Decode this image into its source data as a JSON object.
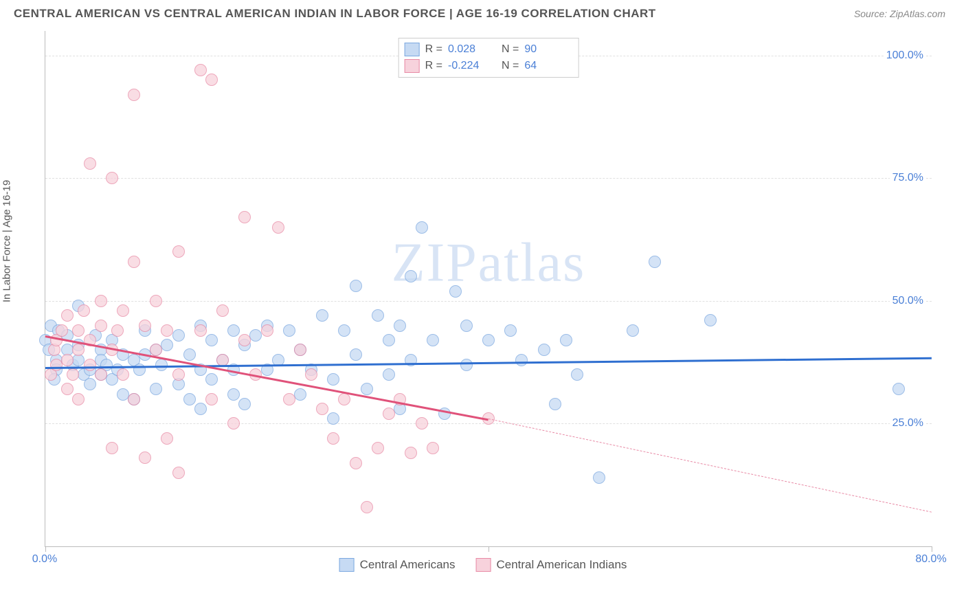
{
  "header": {
    "title": "CENTRAL AMERICAN VS CENTRAL AMERICAN INDIAN IN LABOR FORCE | AGE 16-19 CORRELATION CHART",
    "source": "Source: ZipAtlas.com"
  },
  "chart": {
    "type": "scatter",
    "ylabel": "In Labor Force | Age 16-19",
    "watermark": "ZIPatlas",
    "background_color": "#ffffff",
    "grid_color": "#e0e0e0",
    "axis_color": "#bbbbbb",
    "tick_label_color": "#4a7fd6",
    "label_fontsize": 15,
    "tick_fontsize": 16,
    "xlim": [
      0,
      80
    ],
    "ylim": [
      0,
      105
    ],
    "xticks": [
      {
        "value": 0,
        "label": "0.0%"
      },
      {
        "value": 40,
        "label": ""
      },
      {
        "value": 80,
        "label": "80.0%"
      }
    ],
    "yticks": [
      {
        "value": 25,
        "label": "25.0%"
      },
      {
        "value": 50,
        "label": "50.0%"
      },
      {
        "value": 75,
        "label": "75.0%"
      },
      {
        "value": 100,
        "label": "100.0%"
      }
    ],
    "series": [
      {
        "name": "Central Americans",
        "fill": "#c6daf3",
        "stroke": "#7ba8e0",
        "line_color": "#2f6fd0",
        "r_label": "R =",
        "r_value": "0.028",
        "n_label": "N =",
        "n_value": "90",
        "marker_radius": 8,
        "marker_opacity": 0.75,
        "trend": {
          "x1": 0,
          "y1": 36.5,
          "x2": 80,
          "y2": 38.5,
          "dash_from_x": 80
        },
        "points": [
          [
            0.5,
            45
          ],
          [
            0,
            42
          ],
          [
            0.3,
            40
          ],
          [
            1,
            38
          ],
          [
            1,
            36
          ],
          [
            0.8,
            34
          ],
          [
            1.2,
            44
          ],
          [
            2,
            43
          ],
          [
            2,
            40
          ],
          [
            2.5,
            37
          ],
          [
            3,
            49
          ],
          [
            3,
            41
          ],
          [
            3,
            38
          ],
          [
            3.5,
            35
          ],
          [
            4,
            36
          ],
          [
            4,
            33
          ],
          [
            4.5,
            43
          ],
          [
            5,
            40
          ],
          [
            5,
            38
          ],
          [
            5,
            35
          ],
          [
            5.5,
            37
          ],
          [
            6,
            42
          ],
          [
            6,
            34
          ],
          [
            6.5,
            36
          ],
          [
            7,
            39
          ],
          [
            7,
            31
          ],
          [
            8,
            38
          ],
          [
            8,
            30
          ],
          [
            8.5,
            36
          ],
          [
            9,
            44
          ],
          [
            9,
            39
          ],
          [
            10,
            40
          ],
          [
            10,
            32
          ],
          [
            10.5,
            37
          ],
          [
            11,
            41
          ],
          [
            12,
            43
          ],
          [
            12,
            33
          ],
          [
            13,
            39
          ],
          [
            13,
            30
          ],
          [
            14,
            45
          ],
          [
            14,
            36
          ],
          [
            14,
            28
          ],
          [
            15,
            42
          ],
          [
            15,
            34
          ],
          [
            16,
            38
          ],
          [
            17,
            44
          ],
          [
            17,
            36
          ],
          [
            17,
            31
          ],
          [
            18,
            41
          ],
          [
            18,
            29
          ],
          [
            19,
            43
          ],
          [
            20,
            45
          ],
          [
            20,
            36
          ],
          [
            21,
            38
          ],
          [
            22,
            44
          ],
          [
            23,
            31
          ],
          [
            23,
            40
          ],
          [
            24,
            36
          ],
          [
            25,
            47
          ],
          [
            26,
            34
          ],
          [
            26,
            26
          ],
          [
            27,
            44
          ],
          [
            28,
            39
          ],
          [
            28,
            53
          ],
          [
            29,
            32
          ],
          [
            30,
            47
          ],
          [
            31,
            42
          ],
          [
            31,
            35
          ],
          [
            32,
            45
          ],
          [
            32,
            28
          ],
          [
            33,
            55
          ],
          [
            33,
            38
          ],
          [
            34,
            65
          ],
          [
            35,
            42
          ],
          [
            36,
            27
          ],
          [
            37,
            52
          ],
          [
            38,
            45
          ],
          [
            38,
            37
          ],
          [
            40,
            42
          ],
          [
            42,
            44
          ],
          [
            43,
            38
          ],
          [
            45,
            40
          ],
          [
            46,
            29
          ],
          [
            47,
            42
          ],
          [
            48,
            35
          ],
          [
            50,
            14
          ],
          [
            53,
            44
          ],
          [
            55,
            58
          ],
          [
            60,
            46
          ],
          [
            77,
            32
          ]
        ]
      },
      {
        "name": "Central American Indians",
        "fill": "#f7d2dc",
        "stroke": "#e88aa5",
        "line_color": "#e0527a",
        "r_label": "R =",
        "r_value": "-0.224",
        "n_label": "N =",
        "n_value": "64",
        "marker_radius": 8,
        "marker_opacity": 0.75,
        "trend": {
          "x1": 0,
          "y1": 43,
          "x2": 40,
          "y2": 26,
          "dash_from_x": 40,
          "dash_x2": 80,
          "dash_y2": 7
        },
        "points": [
          [
            0.5,
            35
          ],
          [
            0.8,
            40
          ],
          [
            1,
            37
          ],
          [
            1,
            42
          ],
          [
            1.5,
            44
          ],
          [
            2,
            38
          ],
          [
            2,
            32
          ],
          [
            2,
            47
          ],
          [
            2.5,
            35
          ],
          [
            3,
            40
          ],
          [
            3,
            44
          ],
          [
            3,
            30
          ],
          [
            3.5,
            48
          ],
          [
            4,
            42
          ],
          [
            4,
            37
          ],
          [
            4,
            78
          ],
          [
            5,
            45
          ],
          [
            5,
            35
          ],
          [
            5,
            50
          ],
          [
            6,
            40
          ],
          [
            6,
            20
          ],
          [
            6,
            75
          ],
          [
            6.5,
            44
          ],
          [
            7,
            48
          ],
          [
            7,
            35
          ],
          [
            8,
            58
          ],
          [
            8,
            30
          ],
          [
            8,
            92
          ],
          [
            9,
            45
          ],
          [
            9,
            18
          ],
          [
            10,
            40
          ],
          [
            10,
            50
          ],
          [
            11,
            44
          ],
          [
            11,
            22
          ],
          [
            12,
            35
          ],
          [
            12,
            60
          ],
          [
            12,
            15
          ],
          [
            14,
            44
          ],
          [
            14,
            97
          ],
          [
            15,
            95
          ],
          [
            15,
            30
          ],
          [
            16,
            38
          ],
          [
            16,
            48
          ],
          [
            17,
            25
          ],
          [
            18,
            42
          ],
          [
            18,
            67
          ],
          [
            19,
            35
          ],
          [
            20,
            44
          ],
          [
            21,
            65
          ],
          [
            22,
            30
          ],
          [
            23,
            40
          ],
          [
            24,
            35
          ],
          [
            25,
            28
          ],
          [
            26,
            22
          ],
          [
            27,
            30
          ],
          [
            28,
            17
          ],
          [
            29,
            8
          ],
          [
            30,
            20
          ],
          [
            31,
            27
          ],
          [
            32,
            30
          ],
          [
            33,
            19
          ],
          [
            34,
            25
          ],
          [
            35,
            20
          ],
          [
            40,
            26
          ]
        ]
      }
    ]
  },
  "bottom_legend": {
    "items": [
      {
        "label": "Central Americans",
        "fill": "#c6daf3",
        "stroke": "#7ba8e0"
      },
      {
        "label": "Central American Indians",
        "fill": "#f7d2dc",
        "stroke": "#e88aa5"
      }
    ]
  }
}
